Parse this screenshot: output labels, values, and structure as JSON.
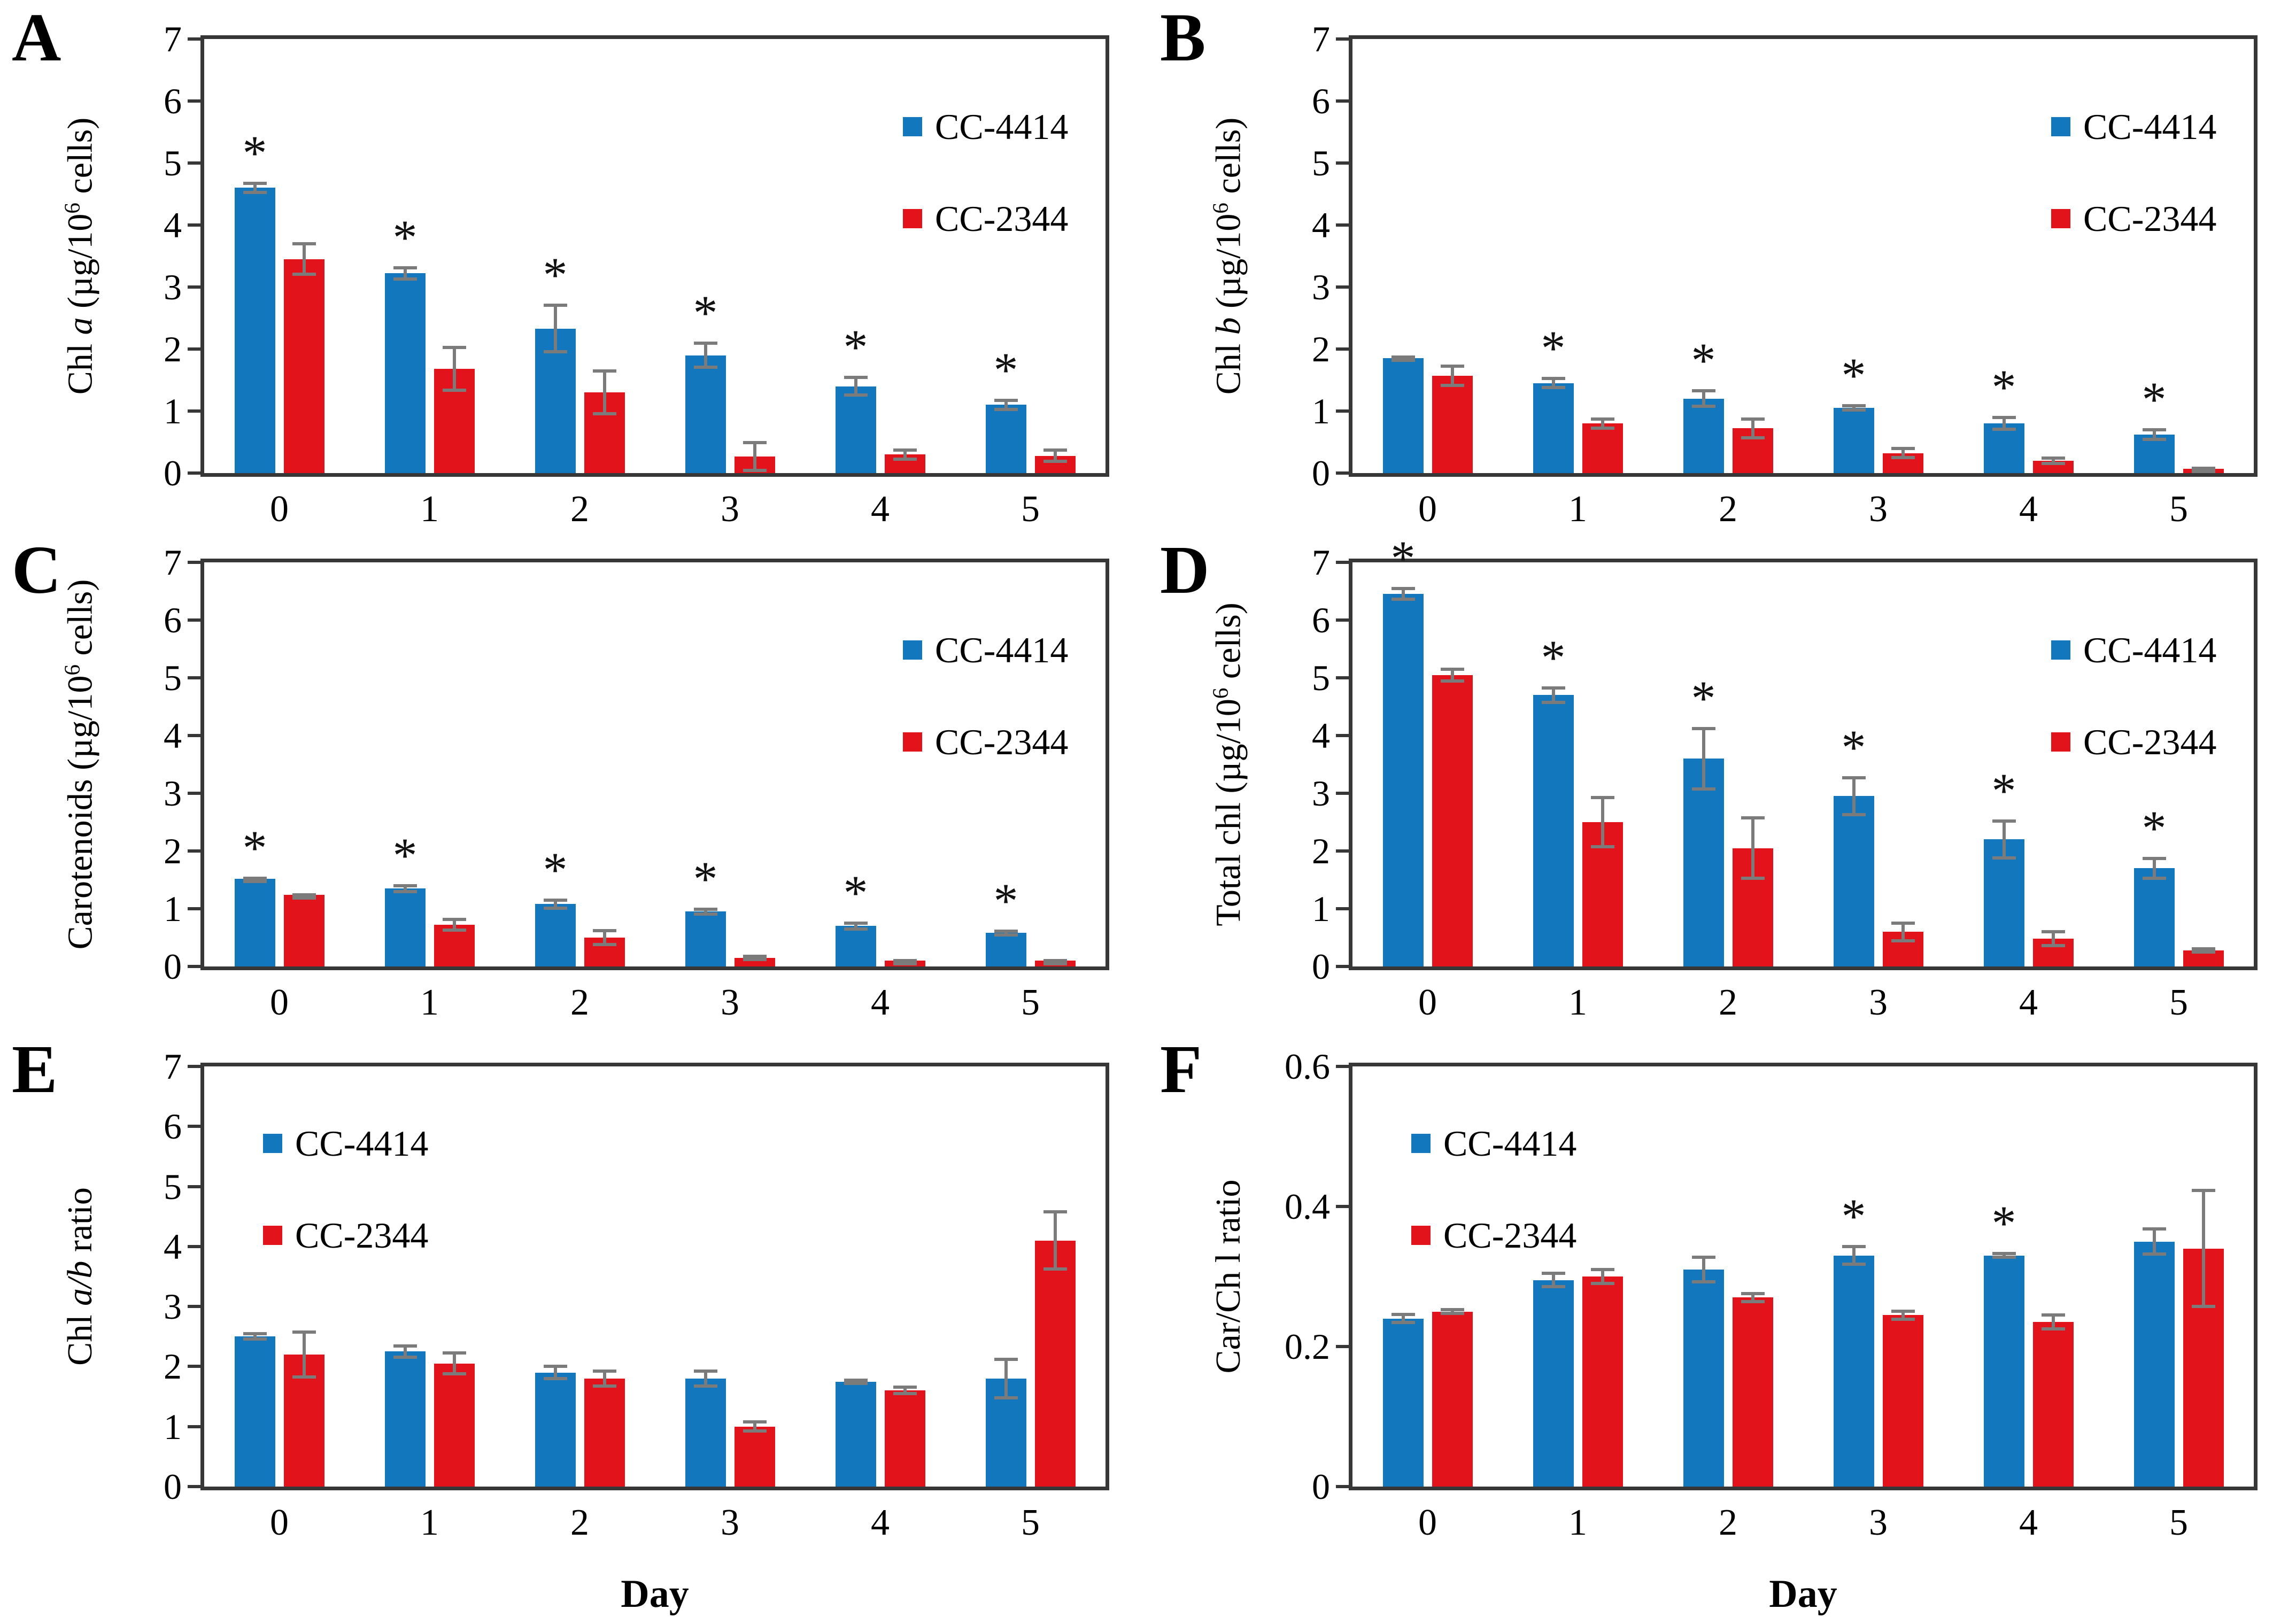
{
  "figure": {
    "description": "Six-panel bar chart figure comparing pigment content of Chlamydomonas strains CC-4414 and CC-2344 over days 0-5",
    "x_axis_label": "Day",
    "series_labels": [
      "CC-4414",
      "CC-2344"
    ],
    "significance_marker": "*",
    "colors": {
      "cc4414": "#1377BE",
      "cc2344": "#E2131B",
      "axis": "#373737",
      "error_bar": "#7B7B7B",
      "text": "#000000",
      "background": "#FFFFFF"
    }
  },
  "chart_data": [
    {
      "panel_label": "A",
      "type": "bar",
      "ylabel": "Chl a (µg/10⁶ cells)",
      "ylabel_parts": [
        {
          "text": "Chl "
        },
        {
          "text": "a",
          "style": "italic"
        },
        {
          "text": " (µg/10"
        },
        {
          "text": "6",
          "style": "sup"
        },
        {
          "text": " cells)"
        }
      ],
      "ylim": [
        0,
        7
      ],
      "yticks": [
        0,
        1,
        2,
        3,
        4,
        5,
        6,
        7
      ],
      "categories": [
        "0",
        "1",
        "2",
        "3",
        "4",
        "5"
      ],
      "xlabel": null,
      "legend_pos": "top-right",
      "series": [
        {
          "name": "CC-4414",
          "color_key": "cc4414",
          "values": [
            4.6,
            3.22,
            2.33,
            1.9,
            1.4,
            1.1
          ],
          "errors": [
            0.1,
            0.12,
            0.4,
            0.22,
            0.17,
            0.1
          ],
          "significant": [
            true,
            true,
            true,
            true,
            true,
            true
          ]
        },
        {
          "name": "CC-2344",
          "color_key": "cc2344",
          "values": [
            3.45,
            1.68,
            1.3,
            0.27,
            0.3,
            0.28
          ],
          "errors": [
            0.27,
            0.37,
            0.37,
            0.25,
            0.1,
            0.12
          ],
          "significant": [
            false,
            false,
            false,
            false,
            false,
            false
          ]
        }
      ]
    },
    {
      "panel_label": "B",
      "type": "bar",
      "ylabel": "Chl b (µg/10⁶ cells)",
      "ylabel_parts": [
        {
          "text": "Chl "
        },
        {
          "text": "b",
          "style": "italic"
        },
        {
          "text": " (µg/10"
        },
        {
          "text": "6",
          "style": "sup"
        },
        {
          "text": " cells)"
        }
      ],
      "ylim": [
        0,
        7
      ],
      "yticks": [
        0,
        1,
        2,
        3,
        4,
        5,
        6,
        7
      ],
      "categories": [
        "0",
        "1",
        "2",
        "3",
        "4",
        "5"
      ],
      "xlabel": null,
      "legend_pos": "top-right",
      "series": [
        {
          "name": "CC-4414",
          "color_key": "cc4414",
          "values": [
            1.85,
            1.45,
            1.2,
            1.05,
            0.8,
            0.62
          ],
          "errors": [
            0.05,
            0.1,
            0.15,
            0.06,
            0.12,
            0.1
          ],
          "significant": [
            false,
            true,
            true,
            true,
            true,
            true
          ]
        },
        {
          "name": "CC-2344",
          "color_key": "cc2344",
          "values": [
            1.57,
            0.8,
            0.72,
            0.32,
            0.2,
            0.07
          ],
          "errors": [
            0.18,
            0.1,
            0.18,
            0.1,
            0.07,
            0.03
          ],
          "significant": [
            false,
            false,
            false,
            false,
            false,
            false
          ]
        }
      ]
    },
    {
      "panel_label": "C",
      "type": "bar",
      "ylabel": "Carotenoids (µg/10⁶ cells)",
      "ylabel_parts": [
        {
          "text": "Carotenoids (µg/10"
        },
        {
          "text": "6",
          "style": "sup"
        },
        {
          "text": " cells)"
        }
      ],
      "ylim": [
        0,
        7
      ],
      "yticks": [
        0,
        1,
        2,
        3,
        4,
        5,
        6,
        7
      ],
      "categories": [
        "0",
        "1",
        "2",
        "3",
        "4",
        "5"
      ],
      "xlabel": null,
      "legend_pos": "top-right",
      "series": [
        {
          "name": "CC-4414",
          "color_key": "cc4414",
          "values": [
            1.52,
            1.35,
            1.08,
            0.95,
            0.7,
            0.58
          ],
          "errors": [
            0.04,
            0.08,
            0.1,
            0.07,
            0.08,
            0.06
          ],
          "significant": [
            true,
            true,
            true,
            true,
            true,
            true
          ]
        },
        {
          "name": "CC-2344",
          "color_key": "cc2344",
          "values": [
            1.24,
            0.72,
            0.5,
            0.15,
            0.1,
            0.1
          ],
          "errors": [
            0.03,
            0.12,
            0.15,
            0.05,
            0.03,
            0.03
          ],
          "significant": [
            false,
            false,
            false,
            false,
            false,
            false
          ]
        }
      ]
    },
    {
      "panel_label": "D",
      "type": "bar",
      "ylabel": "Total chl (µg/10⁶ cells)",
      "ylabel_parts": [
        {
          "text": "Total chl (µg/10"
        },
        {
          "text": "6",
          "style": "sup"
        },
        {
          "text": " cells)"
        }
      ],
      "ylim": [
        0,
        7
      ],
      "yticks": [
        0,
        1,
        2,
        3,
        4,
        5,
        6,
        7
      ],
      "categories": [
        "0",
        "1",
        "2",
        "3",
        "4",
        "5"
      ],
      "xlabel": null,
      "legend_pos": "top-right",
      "series": [
        {
          "name": "CC-4414",
          "color_key": "cc4414",
          "values": [
            6.45,
            4.7,
            3.6,
            2.95,
            2.2,
            1.7
          ],
          "errors": [
            0.12,
            0.15,
            0.55,
            0.35,
            0.35,
            0.2
          ],
          "significant": [
            true,
            true,
            true,
            true,
            true,
            true
          ]
        },
        {
          "name": "CC-2344",
          "color_key": "cc2344",
          "values": [
            5.05,
            2.5,
            2.05,
            0.6,
            0.48,
            0.28
          ],
          "errors": [
            0.13,
            0.45,
            0.55,
            0.18,
            0.15,
            0.05
          ],
          "significant": [
            false,
            false,
            false,
            false,
            false,
            false
          ]
        }
      ]
    },
    {
      "panel_label": "E",
      "type": "bar",
      "ylabel": "Chl a/b ratio",
      "ylabel_parts": [
        {
          "text": "Chl "
        },
        {
          "text": "a/b",
          "style": "italic"
        },
        {
          "text": " ratio"
        }
      ],
      "ylim": [
        0,
        7
      ],
      "yticks": [
        0,
        1,
        2,
        3,
        4,
        5,
        6,
        7
      ],
      "categories": [
        "0",
        "1",
        "2",
        "3",
        "4",
        "5"
      ],
      "xlabel": "Day",
      "legend_pos": "top-left",
      "series": [
        {
          "name": "CC-4414",
          "color_key": "cc4414",
          "values": [
            2.5,
            2.25,
            1.9,
            1.8,
            1.75,
            1.8
          ],
          "errors": [
            0.07,
            0.12,
            0.13,
            0.15,
            0.05,
            0.35
          ],
          "significant": [
            false,
            false,
            false,
            false,
            false,
            false
          ]
        },
        {
          "name": "CC-2344",
          "color_key": "cc2344",
          "values": [
            2.2,
            2.05,
            1.8,
            1.0,
            1.6,
            4.1
          ],
          "errors": [
            0.4,
            0.2,
            0.15,
            0.1,
            0.08,
            0.5
          ],
          "significant": [
            false,
            false,
            false,
            false,
            false,
            false
          ]
        }
      ]
    },
    {
      "panel_label": "F",
      "type": "bar",
      "ylabel": "Car/Ch l ratio",
      "ylabel_parts": [
        {
          "text": "Car/Ch l ratio"
        }
      ],
      "ylim": [
        0,
        0.6
      ],
      "yticks": [
        0,
        0.2,
        0.4,
        0.6
      ],
      "categories": [
        "0",
        "1",
        "2",
        "3",
        "4",
        "5"
      ],
      "xlabel": "Day",
      "legend_pos": "top-left",
      "series": [
        {
          "name": "CC-4414",
          "color_key": "cc4414",
          "values": [
            0.24,
            0.295,
            0.31,
            0.33,
            0.33,
            0.35
          ],
          "errors": [
            0.008,
            0.012,
            0.02,
            0.015,
            0.005,
            0.02
          ],
          "significant": [
            false,
            false,
            false,
            true,
            true,
            false
          ]
        },
        {
          "name": "CC-2344",
          "color_key": "cc2344",
          "values": [
            0.25,
            0.3,
            0.27,
            0.245,
            0.235,
            0.34
          ],
          "errors": [
            0.005,
            0.012,
            0.008,
            0.008,
            0.012,
            0.085
          ],
          "significant": [
            false,
            false,
            false,
            false,
            false,
            false
          ]
        }
      ]
    }
  ]
}
